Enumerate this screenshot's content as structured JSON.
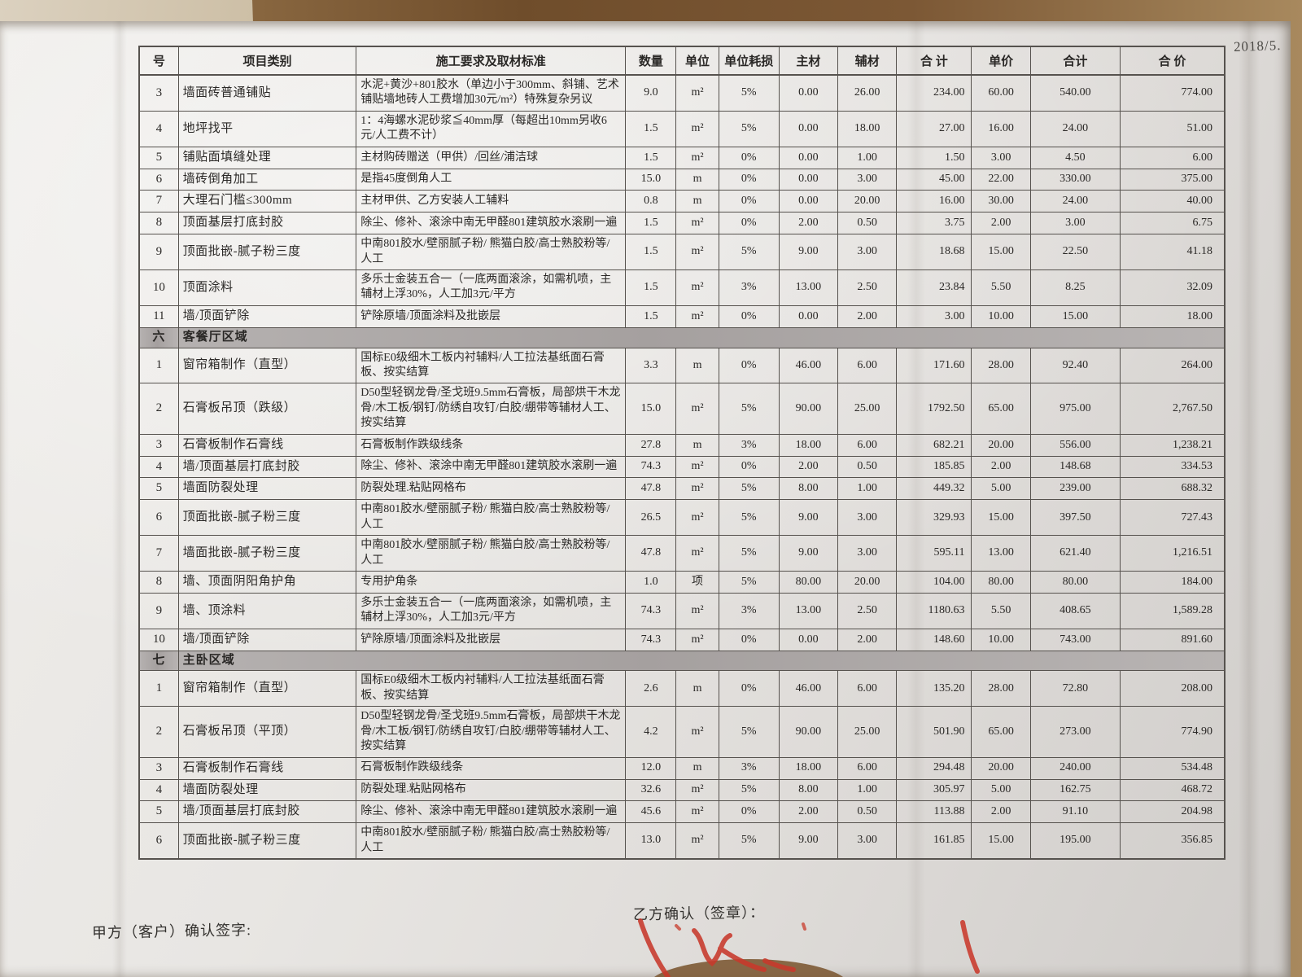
{
  "page": {
    "date_note": "2018/5.",
    "party_a_confirm": "甲方（客户）确认签字:",
    "party_b_confirm": "乙方确认（签章）："
  },
  "colors": {
    "desk_wood": "#6f4d2b",
    "paper": "#e8e6e3",
    "grid_line": "#56524e",
    "section_band": "#a5a09f",
    "text": "#2a2826",
    "stamp_red": "#c8392b"
  },
  "table": {
    "headers": [
      "号",
      "项目类别",
      "施工要求及取材标准",
      "数量",
      "单位",
      "单位耗损",
      "主材",
      "辅材",
      "合 计",
      "单价",
      "合计",
      "合 价"
    ],
    "sections": [
      {
        "id": "",
        "title": "",
        "rows": [
          {
            "no": "3",
            "item": "墙面砖普通铺贴",
            "spec": "水泥+黄沙+801胶水（单边小于300mm、斜铺、艺术铺贴墙地砖人工费增加30元/m²）特殊复杂另议",
            "qty": "9.0",
            "unit": "m²",
            "loss": "5%",
            "main": "0.00",
            "aux": "26.00",
            "sum1": "234.00",
            "price": "60.00",
            "sum2": "540.00",
            "total": "774.00"
          },
          {
            "no": "4",
            "item": "地坪找平",
            "spec": "1：4海螺水泥砂浆≦40mm厚（每超出10mm另收6元/人工费不计）",
            "qty": "1.5",
            "unit": "m²",
            "loss": "5%",
            "main": "0.00",
            "aux": "18.00",
            "sum1": "27.00",
            "price": "16.00",
            "sum2": "24.00",
            "total": "51.00"
          },
          {
            "no": "5",
            "item": "铺贴面填缝处理",
            "spec": "主材购砖赠送（甲供）/回丝/浦洁球",
            "qty": "1.5",
            "unit": "m²",
            "loss": "0%",
            "main": "0.00",
            "aux": "1.00",
            "sum1": "1.50",
            "price": "3.00",
            "sum2": "4.50",
            "total": "6.00"
          },
          {
            "no": "6",
            "item": "墙砖倒角加工",
            "spec": "是指45度倒角人工",
            "qty": "15.0",
            "unit": "m",
            "loss": "0%",
            "main": "0.00",
            "aux": "3.00",
            "sum1": "45.00",
            "price": "22.00",
            "sum2": "330.00",
            "total": "375.00"
          },
          {
            "no": "7",
            "item": "大理石门槛≤300mm",
            "spec": "主材甲供、乙方安装人工辅料",
            "qty": "0.8",
            "unit": "m",
            "loss": "0%",
            "main": "0.00",
            "aux": "20.00",
            "sum1": "16.00",
            "price": "30.00",
            "sum2": "24.00",
            "total": "40.00"
          },
          {
            "no": "8",
            "item": "顶面基层打底封胶",
            "spec": "除尘、修补、滚涂中南无甲醛801建筑胶水滚刷一遍",
            "qty": "1.5",
            "unit": "m²",
            "loss": "0%",
            "main": "2.00",
            "aux": "0.50",
            "sum1": "3.75",
            "price": "2.00",
            "sum2": "3.00",
            "total": "6.75"
          },
          {
            "no": "9",
            "item": "顶面批嵌-腻子粉三度",
            "spec": "中南801胶水/壁丽腻子粉/ 熊猫白胶/高士熟胶粉等/人工",
            "qty": "1.5",
            "unit": "m²",
            "loss": "5%",
            "main": "9.00",
            "aux": "3.00",
            "sum1": "18.68",
            "price": "15.00",
            "sum2": "22.50",
            "total": "41.18"
          },
          {
            "no": "10",
            "item": "顶面涂料",
            "spec": "多乐士金装五合一（一底两面滚涂，如需机喷，主辅材上浮30%，人工加3元/平方",
            "qty": "1.5",
            "unit": "m²",
            "loss": "3%",
            "main": "13.00",
            "aux": "2.50",
            "sum1": "23.84",
            "price": "5.50",
            "sum2": "8.25",
            "total": "32.09"
          },
          {
            "no": "11",
            "item": "墙/顶面铲除",
            "spec": "铲除原墙/顶面涂料及批嵌层",
            "qty": "1.5",
            "unit": "m²",
            "loss": "0%",
            "main": "0.00",
            "aux": "2.00",
            "sum1": "3.00",
            "price": "10.00",
            "sum2": "15.00",
            "total": "18.00"
          }
        ]
      },
      {
        "id": "六",
        "title": "客餐厅区域",
        "rows": [
          {
            "no": "1",
            "item": "窗帘箱制作（直型）",
            "spec": "国标E0级细木工板内衬辅料/人工拉法基纸面石膏板、按实结算",
            "qty": "3.3",
            "unit": "m",
            "loss": "0%",
            "main": "46.00",
            "aux": "6.00",
            "sum1": "171.60",
            "price": "28.00",
            "sum2": "92.40",
            "total": "264.00"
          },
          {
            "no": "2",
            "item": "石膏板吊顶（跌级）",
            "spec": "D50型轻钢龙骨/圣戈班9.5mm石膏板，局部烘干木龙骨/木工板/钢钉/防绣自攻钉/白胶/绷带等辅材人工、按实结算",
            "qty": "15.0",
            "unit": "m²",
            "loss": "5%",
            "main": "90.00",
            "aux": "25.00",
            "sum1": "1792.50",
            "price": "65.00",
            "sum2": "975.00",
            "total": "2,767.50"
          },
          {
            "no": "3",
            "item": "石膏板制作石膏线",
            "spec": "石膏板制作跌级线条",
            "qty": "27.8",
            "unit": "m",
            "loss": "3%",
            "main": "18.00",
            "aux": "6.00",
            "sum1": "682.21",
            "price": "20.00",
            "sum2": "556.00",
            "total": "1,238.21"
          },
          {
            "no": "4",
            "item": "墙/顶面基层打底封胶",
            "spec": "除尘、修补、滚涂中南无甲醛801建筑胶水滚刷一遍",
            "qty": "74.3",
            "unit": "m²",
            "loss": "0%",
            "main": "2.00",
            "aux": "0.50",
            "sum1": "185.85",
            "price": "2.00",
            "sum2": "148.68",
            "total": "334.53"
          },
          {
            "no": "5",
            "item": "墙面防裂处理",
            "spec": "防裂处理.粘贴网格布",
            "qty": "47.8",
            "unit": "m²",
            "loss": "5%",
            "main": "8.00",
            "aux": "1.00",
            "sum1": "449.32",
            "price": "5.00",
            "sum2": "239.00",
            "total": "688.32"
          },
          {
            "no": "6",
            "item": "顶面批嵌-腻子粉三度",
            "spec": "中南801胶水/壁丽腻子粉/ 熊猫白胶/高士熟胶粉等/人工",
            "qty": "26.5",
            "unit": "m²",
            "loss": "5%",
            "main": "9.00",
            "aux": "3.00",
            "sum1": "329.93",
            "price": "15.00",
            "sum2": "397.50",
            "total": "727.43"
          },
          {
            "no": "7",
            "item": "墙面批嵌-腻子粉三度",
            "spec": "中南801胶水/壁丽腻子粉/ 熊猫白胶/高士熟胶粉等/人工",
            "qty": "47.8",
            "unit": "m²",
            "loss": "5%",
            "main": "9.00",
            "aux": "3.00",
            "sum1": "595.11",
            "price": "13.00",
            "sum2": "621.40",
            "total": "1,216.51"
          },
          {
            "no": "8",
            "item": "墙、顶面阴阳角护角",
            "spec": "专用护角条",
            "qty": "1.0",
            "unit": "项",
            "loss": "5%",
            "main": "80.00",
            "aux": "20.00",
            "sum1": "104.00",
            "price": "80.00",
            "sum2": "80.00",
            "total": "184.00"
          },
          {
            "no": "9",
            "item": "墙、顶涂料",
            "spec": "多乐士金装五合一（一底两面滚涂，如需机喷，主辅材上浮30%，人工加3元/平方",
            "qty": "74.3",
            "unit": "m²",
            "loss": "3%",
            "main": "13.00",
            "aux": "2.50",
            "sum1": "1180.63",
            "price": "5.50",
            "sum2": "408.65",
            "total": "1,589.28"
          },
          {
            "no": "10",
            "item": "墙/顶面铲除",
            "spec": "铲除原墙/顶面涂料及批嵌层",
            "qty": "74.3",
            "unit": "m²",
            "loss": "0%",
            "main": "0.00",
            "aux": "2.00",
            "sum1": "148.60",
            "price": "10.00",
            "sum2": "743.00",
            "total": "891.60"
          }
        ]
      },
      {
        "id": "七",
        "title": "主卧区域",
        "rows": [
          {
            "no": "1",
            "item": "窗帘箱制作（直型）",
            "spec": "国标E0级细木工板内衬辅料/人工拉法基纸面石膏板、按实结算",
            "qty": "2.6",
            "unit": "m",
            "loss": "0%",
            "main": "46.00",
            "aux": "6.00",
            "sum1": "135.20",
            "price": "28.00",
            "sum2": "72.80",
            "total": "208.00"
          },
          {
            "no": "2",
            "item": "石膏板吊顶（平顶）",
            "spec": "D50型轻钢龙骨/圣戈班9.5mm石膏板，局部烘干木龙骨/木工板/钢钉/防绣自攻钉/白胶/绷带等辅材人工、按实结算",
            "qty": "4.2",
            "unit": "m²",
            "loss": "5%",
            "main": "90.00",
            "aux": "25.00",
            "sum1": "501.90",
            "price": "65.00",
            "sum2": "273.00",
            "total": "774.90"
          },
          {
            "no": "3",
            "item": "石膏板制作石膏线",
            "spec": "石膏板制作跌级线条",
            "qty": "12.0",
            "unit": "m",
            "loss": "3%",
            "main": "18.00",
            "aux": "6.00",
            "sum1": "294.48",
            "price": "20.00",
            "sum2": "240.00",
            "total": "534.48"
          },
          {
            "no": "4",
            "item": "墙面防裂处理",
            "spec": "防裂处理.粘贴网格布",
            "qty": "32.6",
            "unit": "m²",
            "loss": "5%",
            "main": "8.00",
            "aux": "1.00",
            "sum1": "305.97",
            "price": "5.00",
            "sum2": "162.75",
            "total": "468.72"
          },
          {
            "no": "5",
            "item": "墙/顶面基层打底封胶",
            "spec": "除尘、修补、滚涂中南无甲醛801建筑胶水滚刷一遍",
            "qty": "45.6",
            "unit": "m²",
            "loss": "0%",
            "main": "2.00",
            "aux": "0.50",
            "sum1": "113.88",
            "price": "2.00",
            "sum2": "91.10",
            "total": "204.98"
          },
          {
            "no": "6",
            "item": "顶面批嵌-腻子粉三度",
            "spec": "中南801胶水/壁丽腻子粉/ 熊猫白胶/高士熟胶粉等/人工",
            "qty": "13.0",
            "unit": "m²",
            "loss": "5%",
            "main": "9.00",
            "aux": "3.00",
            "sum1": "161.85",
            "price": "15.00",
            "sum2": "195.00",
            "total": "356.85"
          }
        ]
      }
    ]
  }
}
